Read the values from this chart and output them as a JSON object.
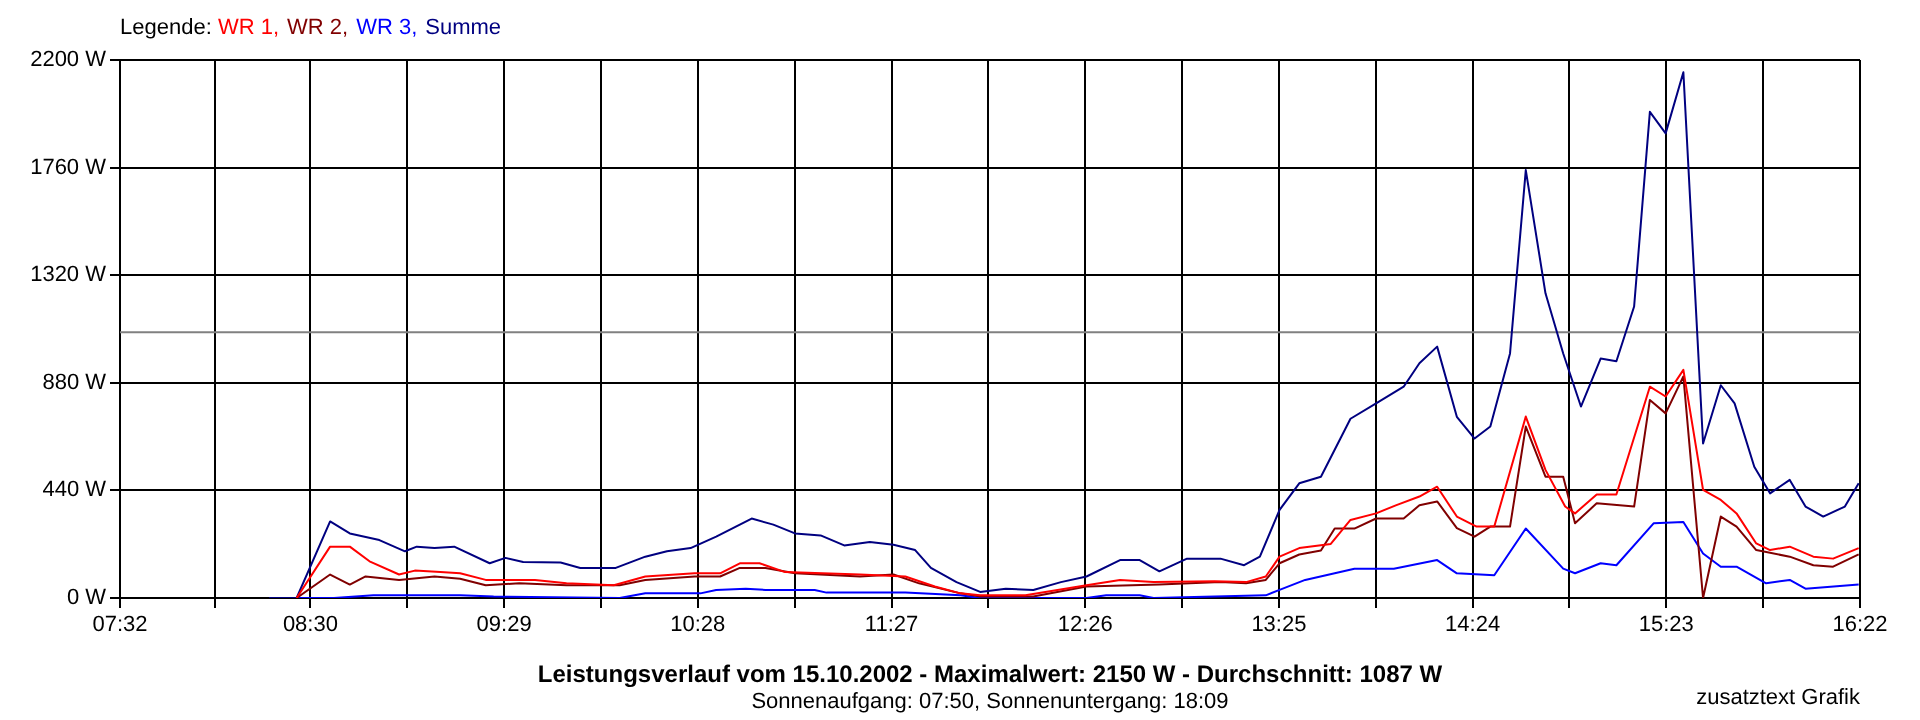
{
  "chart_data": {
    "type": "line",
    "title": "Leistungsverlauf vom 15.10.2002 - Maximalwert: 2150 W - Durchschnitt: 1087 W",
    "subtitle": "Sonnenaufgang: 07:50, Sonnenuntergang: 18:09",
    "legend_title": "Legende:",
    "annotations": [
      "zusatztext Grafik"
    ],
    "series": [
      {
        "name": "WR 1,",
        "color": "#ff0000",
        "x": [
          8.43,
          8.6,
          8.7,
          8.8,
          8.95,
          9.03,
          9.16,
          9.26,
          9.39,
          9.64,
          9.8,
          10.04,
          10.2,
          10.45,
          10.58,
          10.68,
          10.78,
          10.91,
          11.29,
          11.52,
          11.67,
          11.8,
          11.9,
          12.13,
          12.44,
          12.61,
          12.78,
          13.09,
          13.25,
          13.35,
          13.42,
          13.52,
          13.68,
          13.78,
          13.91,
          14.01,
          14.13,
          14.22,
          14.32,
          14.42,
          14.51,
          14.67,
          14.77,
          14.87,
          14.92,
          15.03,
          15.13,
          15.3,
          15.38,
          15.47,
          15.57,
          15.66,
          15.74,
          15.84,
          15.91,
          16.01,
          16.13,
          16.23,
          16.36
        ],
        "values": [
          0,
          210,
          210,
          150,
          96,
          112,
          106,
          101,
          74,
          74,
          60,
          52,
          88,
          101,
          101,
          142,
          142,
          106,
          96,
          88,
          47,
          19,
          11,
          11,
          52,
          74,
          65,
          68,
          65,
          88,
          169,
          204,
          221,
          319,
          346,
          379,
          415,
          455,
          333,
          292,
          292,
          742,
          524,
          374,
          346,
          423,
          423,
          864,
          824,
          933,
          442,
          401,
          346,
          223,
          196,
          210,
          169,
          161,
          204
        ]
      },
      {
        "name": "WR 2,",
        "color": "#800000",
        "x": [
          8.43,
          8.6,
          8.7,
          8.78,
          8.95,
          9.13,
          9.26,
          9.39,
          9.56,
          9.8,
          10.07,
          10.2,
          10.45,
          10.58,
          10.68,
          10.81,
          10.96,
          11.29,
          11.46,
          11.59,
          11.8,
          11.9,
          12.17,
          12.44,
          12.81,
          13.12,
          13.25,
          13.35,
          13.42,
          13.52,
          13.63,
          13.7,
          13.8,
          13.91,
          14.05,
          14.13,
          14.22,
          14.32,
          14.41,
          14.49,
          14.59,
          14.67,
          14.77,
          14.86,
          14.92,
          15.03,
          15.22,
          15.3,
          15.38,
          15.47,
          15.57,
          15.66,
          15.74,
          15.84,
          16.01,
          16.13,
          16.23,
          16.36
        ],
        "values": [
          0,
          96,
          55,
          88,
          74,
          88,
          79,
          52,
          60,
          52,
          52,
          74,
          88,
          88,
          123,
          123,
          101,
          88,
          96,
          60,
          19,
          6,
          6,
          47,
          55,
          65,
          60,
          74,
          142,
          178,
          194,
          284,
          284,
          325,
          325,
          379,
          395,
          286,
          251,
          292,
          292,
          701,
          496,
          496,
          306,
          387,
          374,
          810,
          755,
          906,
          0,
          333,
          292,
          196,
          169,
          134,
          128,
          178
        ]
      },
      {
        "name": "WR 3,",
        "color": "#0000ff",
        "x": [
          8.43,
          8.62,
          8.82,
          9.26,
          9.43,
          10.07,
          10.2,
          10.48,
          10.56,
          10.71,
          10.81,
          11.06,
          11.12,
          11.52,
          11.8,
          11.9,
          12.44,
          12.54,
          12.71,
          12.78,
          13.35,
          13.42,
          13.55,
          13.8,
          14.0,
          14.22,
          14.32,
          14.51,
          14.67,
          14.86,
          14.92,
          15.05,
          15.13,
          15.32,
          15.47,
          15.57,
          15.66,
          15.74,
          15.89,
          16.01,
          16.09,
          16.36
        ],
        "values": [
          0,
          0,
          11,
          11,
          6,
          0,
          19,
          19,
          33,
          38,
          33,
          33,
          22,
          22,
          11,
          0,
          0,
          11,
          11,
          0,
          11,
          33,
          74,
          120,
          120,
          155,
          101,
          93,
          284,
          120,
          101,
          142,
          134,
          306,
          311,
          182,
          128,
          128,
          60,
          74,
          38,
          55
        ]
      },
      {
        "name": "Summe",
        "color": "#000080",
        "x": [
          8.29,
          8.43,
          8.6,
          8.7,
          8.85,
          8.98,
          9.04,
          9.13,
          9.23,
          9.41,
          9.49,
          9.58,
          9.77,
          9.87,
          10.05,
          10.2,
          10.31,
          10.43,
          10.56,
          10.74,
          10.85,
          10.96,
          11.09,
          11.21,
          11.34,
          11.46,
          11.57,
          11.65,
          11.78,
          11.9,
          12.03,
          12.17,
          12.31,
          12.44,
          12.61,
          12.71,
          12.81,
          12.95,
          13.12,
          13.24,
          13.32,
          13.42,
          13.52,
          13.63,
          13.78,
          13.91,
          14.05,
          14.13,
          14.22,
          14.32,
          14.41,
          14.49,
          14.59,
          14.67,
          14.77,
          14.86,
          14.95,
          15.05,
          15.13,
          15.22,
          15.3,
          15.38,
          15.47,
          15.57,
          15.66,
          15.73,
          15.83,
          15.91,
          16.01,
          16.09,
          16.18,
          16.29,
          16.36
        ],
        "values": [
          0,
          0,
          313,
          264,
          237,
          191,
          210,
          204,
          210,
          142,
          164,
          147,
          145,
          123,
          123,
          169,
          191,
          204,
          251,
          325,
          300,
          264,
          256,
          215,
          229,
          218,
          196,
          123,
          65,
          25,
          38,
          33,
          65,
          88,
          155,
          155,
          109,
          161,
          161,
          134,
          169,
          360,
          469,
          496,
          733,
          796,
          864,
          960,
          1028,
          741,
          652,
          701,
          1000,
          1750,
          1246,
          1000,
          783,
          979,
          968,
          1192,
          1988,
          1900,
          2150,
          632,
          870,
          796,
          537,
          428,
          483,
          374,
          333,
          374,
          469
        ]
      }
    ],
    "xlim": [
      7.5333,
      16.3667
    ],
    "xticks": [
      {
        "value": 7.5333,
        "label": "07:32"
      },
      {
        "value": 8.0167,
        "label": null
      },
      {
        "value": 8.5,
        "label": "08:30"
      },
      {
        "value": 8.9917,
        "label": null
      },
      {
        "value": 9.4833,
        "label": "09:29"
      },
      {
        "value": 9.975,
        "label": null
      },
      {
        "value": 10.4667,
        "label": "10:28"
      },
      {
        "value": 10.9583,
        "label": null
      },
      {
        "value": 11.45,
        "label": "11:27"
      },
      {
        "value": 11.9417,
        "label": null
      },
      {
        "value": 12.4333,
        "label": "12:26"
      },
      {
        "value": 12.925,
        "label": null
      },
      {
        "value": 13.4167,
        "label": "13:25"
      },
      {
        "value": 13.9083,
        "label": null
      },
      {
        "value": 14.4,
        "label": "14:24"
      },
      {
        "value": 14.8917,
        "label": null
      },
      {
        "value": 15.3833,
        "label": "15:23"
      },
      {
        "value": 15.875,
        "label": null
      },
      {
        "value": 16.3667,
        "label": "16:22"
      }
    ],
    "ylim": [
      0,
      2200
    ],
    "yticks": [
      {
        "value": 0,
        "label": "0 W"
      },
      {
        "value": 440,
        "label": "440 W"
      },
      {
        "value": 880,
        "label": "880 W"
      },
      {
        "value": 1320,
        "label": "1320 W"
      },
      {
        "value": 1760,
        "label": "1760 W"
      },
      {
        "value": 2200,
        "label": "2200 W"
      }
    ],
    "ref_lines": [
      {
        "axis": "y",
        "value": 1087,
        "color": "#808080"
      }
    ],
    "grid": true,
    "legend": "top left",
    "marker": "none",
    "line_style": "solid"
  }
}
